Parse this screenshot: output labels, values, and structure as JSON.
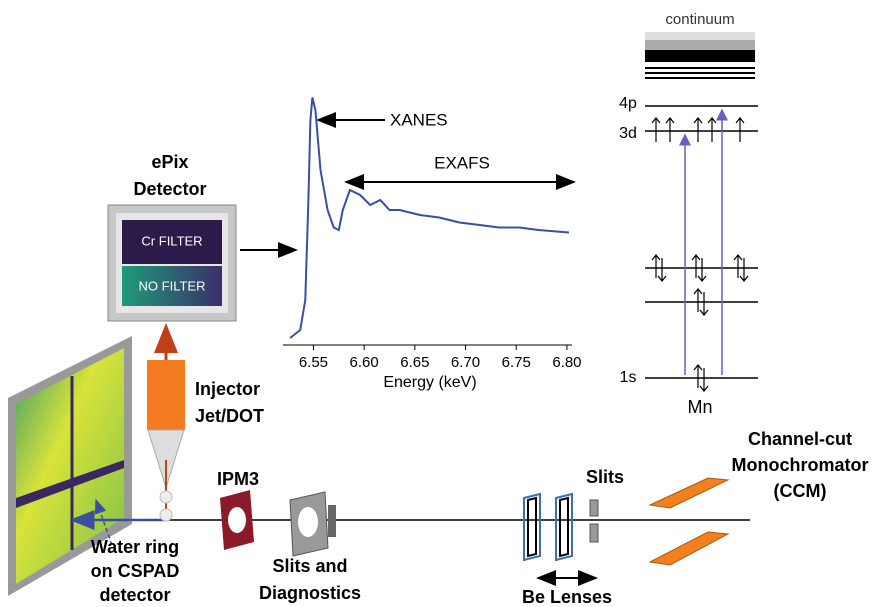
{
  "energy_levels": {
    "continuum": "continuum",
    "p4": "4p",
    "d3": "3d",
    "s1": "1s",
    "element": "Mn"
  },
  "detector": {
    "title": [
      "ePix",
      "Detector"
    ],
    "filters": [
      "Cr FILTER",
      "NO FILTER"
    ]
  },
  "spectrum": {
    "type": "line",
    "x": [
      6.527,
      6.537,
      6.542,
      6.545,
      6.547,
      6.549,
      6.552,
      6.557,
      6.564,
      6.57,
      6.575,
      6.579,
      6.586,
      6.596,
      6.606,
      6.616,
      6.625,
      6.635,
      6.655,
      6.674,
      6.694,
      6.714,
      6.733,
      6.753,
      6.772,
      6.802
    ],
    "values": [
      0.028,
      0.06,
      0.18,
      0.58,
      0.9,
      0.99,
      0.94,
      0.7,
      0.54,
      0.47,
      0.46,
      0.54,
      0.62,
      0.6,
      0.56,
      0.58,
      0.54,
      0.54,
      0.52,
      0.51,
      0.49,
      0.48,
      0.47,
      0.47,
      0.46,
      0.45
    ],
    "color": "#3b4fa0",
    "xlim": [
      6.52,
      6.805
    ],
    "ylim": [
      0,
      1
    ],
    "xticks": [
      6.55,
      {
        "value": 6.6,
        "label": "6.60"
      },
      6.65,
      {
        "value": 6.7,
        "label": "6.70"
      },
      6.75,
      {
        "value": 6.8,
        "label": "6.80"
      }
    ],
    "xlabel": "Energy (keV)",
    "annotations": [
      "XANES",
      "EXAFS"
    ]
  },
  "components": {
    "injector": [
      "Injector",
      "Jet/DOT"
    ],
    "ipm": "IPM3",
    "slits_diagnostics": [
      "Slits and",
      "Diagnostics"
    ],
    "be_lenses": "Be Lenses",
    "slits": "Slits",
    "ccm": [
      "Channel-cut",
      "Monochromator",
      "(CCM)"
    ],
    "water_ring": [
      "Water ring",
      "on CSPAD",
      "detector"
    ]
  }
}
